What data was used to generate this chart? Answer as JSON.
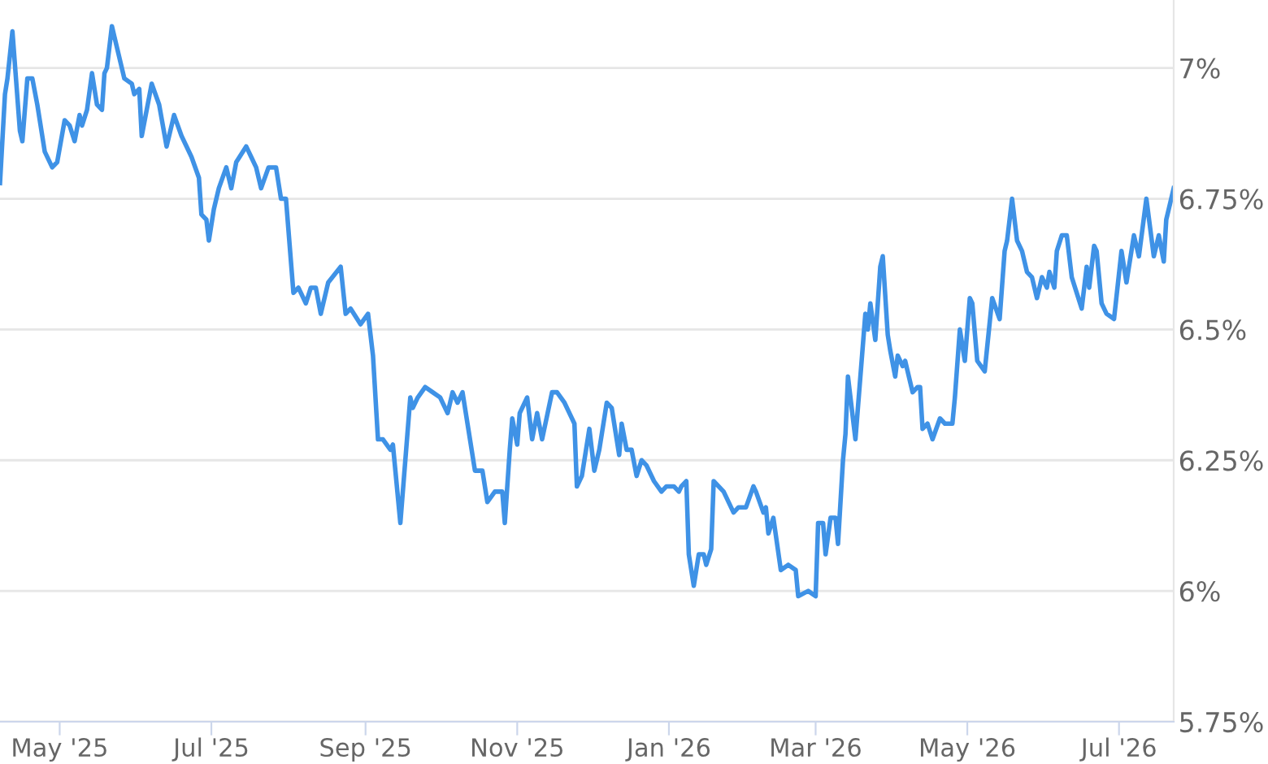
{
  "chart_data": {
    "type": "line",
    "x": [
      "2025-04-07",
      "2025-04-09",
      "2025-04-10",
      "2025-04-12",
      "2025-04-15",
      "2025-04-16",
      "2025-04-18",
      "2025-04-20",
      "2025-04-22",
      "2025-04-25",
      "2025-04-28",
      "2025-04-30",
      "2025-05-03",
      "2025-05-05",
      "2025-05-07",
      "2025-05-09",
      "2025-05-10",
      "2025-05-12",
      "2025-05-14",
      "2025-05-16",
      "2025-05-18",
      "2025-05-19",
      "2025-05-20",
      "2025-05-22",
      "2025-05-23",
      "2025-05-27",
      "2025-05-30",
      "2025-05-31",
      "2025-06-02",
      "2025-06-03",
      "2025-06-07",
      "2025-06-10",
      "2025-06-13",
      "2025-06-16",
      "2025-06-19",
      "2025-06-23",
      "2025-06-26",
      "2025-06-27",
      "2025-06-29",
      "2025-06-30",
      "2025-07-02",
      "2025-07-04",
      "2025-07-07",
      "2025-07-09",
      "2025-07-11",
      "2025-07-15",
      "2025-07-17",
      "2025-07-19",
      "2025-07-21",
      "2025-07-24",
      "2025-07-27",
      "2025-07-29",
      "2025-07-31",
      "2025-08-03",
      "2025-08-05",
      "2025-08-08",
      "2025-08-10",
      "2025-08-12",
      "2025-08-14",
      "2025-08-17",
      "2025-08-22",
      "2025-08-24",
      "2025-08-26",
      "2025-08-30",
      "2025-09-02",
      "2025-09-04",
      "2025-09-06",
      "2025-09-08",
      "2025-09-11",
      "2025-09-12",
      "2025-09-15",
      "2025-09-19",
      "2025-09-20",
      "2025-09-22",
      "2025-09-25",
      "2025-09-28",
      "2025-10-01",
      "2025-10-04",
      "2025-10-06",
      "2025-10-08",
      "2025-10-10",
      "2025-10-12",
      "2025-10-15",
      "2025-10-18",
      "2025-10-20",
      "2025-10-23",
      "2025-10-26",
      "2025-10-27",
      "2025-10-29",
      "2025-10-30",
      "2025-11-01",
      "2025-11-02",
      "2025-11-05",
      "2025-11-07",
      "2025-11-09",
      "2025-11-11",
      "2025-11-15",
      "2025-11-17",
      "2025-11-20",
      "2025-11-24",
      "2025-11-25",
      "2025-11-27",
      "2025-11-30",
      "2025-12-02",
      "2025-12-04",
      "2025-12-07",
      "2025-12-09",
      "2025-12-12",
      "2025-12-13",
      "2025-12-15",
      "2025-12-17",
      "2025-12-19",
      "2025-12-21",
      "2025-12-23",
      "2025-12-26",
      "2025-12-29",
      "2025-12-31",
      "2026-01-03",
      "2026-01-05",
      "2026-01-06",
      "2026-01-08",
      "2026-01-09",
      "2026-01-11",
      "2026-01-13",
      "2026-01-15",
      "2026-01-16",
      "2026-01-18",
      "2026-01-19",
      "2026-01-23",
      "2026-01-27",
      "2026-01-29",
      "2026-02-01",
      "2026-02-04",
      "2026-02-05",
      "2026-02-08",
      "2026-02-09",
      "2026-02-10",
      "2026-02-12",
      "2026-02-15",
      "2026-02-18",
      "2026-02-21",
      "2026-02-22",
      "2026-02-26",
      "2026-03-01",
      "2026-03-02",
      "2026-03-04",
      "2026-03-05",
      "2026-03-07",
      "2026-03-09",
      "2026-03-10",
      "2026-03-12",
      "2026-03-13",
      "2026-03-14",
      "2026-03-17",
      "2026-03-21",
      "2026-03-22",
      "2026-03-23",
      "2026-03-25",
      "2026-03-27",
      "2026-03-28",
      "2026-03-30",
      "2026-03-31",
      "2026-04-02",
      "2026-04-03",
      "2026-04-05",
      "2026-04-06",
      "2026-04-09",
      "2026-04-11",
      "2026-04-12",
      "2026-04-13",
      "2026-04-15",
      "2026-04-17",
      "2026-04-20",
      "2026-04-22",
      "2026-04-25",
      "2026-04-26",
      "2026-04-28",
      "2026-04-30",
      "2026-05-02",
      "2026-05-03",
      "2026-05-05",
      "2026-05-08",
      "2026-05-11",
      "2026-05-14",
      "2026-05-16",
      "2026-05-17",
      "2026-05-19",
      "2026-05-21",
      "2026-05-23",
      "2026-05-25",
      "2026-05-27",
      "2026-05-29",
      "2026-05-31",
      "2026-06-02",
      "2026-06-03",
      "2026-06-05",
      "2026-06-06",
      "2026-06-08",
      "2026-06-10",
      "2026-06-12",
      "2026-06-14",
      "2026-06-16",
      "2026-06-18",
      "2026-06-19",
      "2026-06-21",
      "2026-06-22",
      "2026-06-24",
      "2026-06-26",
      "2026-06-29",
      "2026-07-02",
      "2026-07-04",
      "2026-07-07",
      "2026-07-09",
      "2026-07-12",
      "2026-07-15",
      "2026-07-17",
      "2026-07-19",
      "2026-07-20",
      "2026-07-23"
    ],
    "series": [
      {
        "color": "#3f92e6",
        "values": [
          6.78,
          6.95,
          6.98,
          7.07,
          6.88,
          6.86,
          6.98,
          6.98,
          6.93,
          6.84,
          6.81,
          6.82,
          6.9,
          6.89,
          6.86,
          6.91,
          6.89,
          6.92,
          6.99,
          6.93,
          6.92,
          6.99,
          7.0,
          7.08,
          7.06,
          6.98,
          6.97,
          6.95,
          6.96,
          6.87,
          6.97,
          6.93,
          6.85,
          6.91,
          6.87,
          6.83,
          6.79,
          6.72,
          6.71,
          6.67,
          6.73,
          6.77,
          6.81,
          6.77,
          6.82,
          6.85,
          6.83,
          6.81,
          6.77,
          6.81,
          6.81,
          6.75,
          6.75,
          6.57,
          6.58,
          6.55,
          6.58,
          6.58,
          6.53,
          6.59,
          6.62,
          6.53,
          6.54,
          6.51,
          6.53,
          6.45,
          6.29,
          6.29,
          6.27,
          6.28,
          6.13,
          6.37,
          6.35,
          6.37,
          6.39,
          6.38,
          6.37,
          6.34,
          6.38,
          6.36,
          6.38,
          6.32,
          6.23,
          6.23,
          6.17,
          6.19,
          6.19,
          6.13,
          6.27,
          6.33,
          6.28,
          6.34,
          6.37,
          6.29,
          6.34,
          6.29,
          6.38,
          6.38,
          6.36,
          6.32,
          6.2,
          6.22,
          6.31,
          6.23,
          6.27,
          6.36,
          6.35,
          6.26,
          6.32,
          6.27,
          6.27,
          6.22,
          6.25,
          6.24,
          6.21,
          6.19,
          6.2,
          6.2,
          6.19,
          6.2,
          6.21,
          6.07,
          6.01,
          6.07,
          6.07,
          6.05,
          6.08,
          6.21,
          6.19,
          6.15,
          6.16,
          6.16,
          6.2,
          6.19,
          6.15,
          6.16,
          6.11,
          6.14,
          6.04,
          6.05,
          6.04,
          5.99,
          6.0,
          5.99,
          6.13,
          6.13,
          6.07,
          6.14,
          6.14,
          6.09,
          6.25,
          6.3,
          6.41,
          6.29,
          6.53,
          6.5,
          6.55,
          6.48,
          6.62,
          6.64,
          6.49,
          6.46,
          6.41,
          6.45,
          6.43,
          6.44,
          6.38,
          6.39,
          6.39,
          6.31,
          6.32,
          6.29,
          6.33,
          6.32,
          6.32,
          6.37,
          6.5,
          6.44,
          6.56,
          6.55,
          6.44,
          6.42,
          6.56,
          6.52,
          6.65,
          6.67,
          6.75,
          6.67,
          6.65,
          6.61,
          6.6,
          6.56,
          6.6,
          6.58,
          6.61,
          6.58,
          6.65,
          6.68,
          6.68,
          6.6,
          6.57,
          6.54,
          6.62,
          6.58,
          6.66,
          6.65,
          6.55,
          6.53,
          6.52,
          6.65,
          6.59,
          6.68,
          6.64,
          6.75,
          6.64,
          6.68,
          6.63,
          6.71,
          6.77
        ]
      }
    ],
    "xlim": [
      "2025-04-07",
      "2026-07-23"
    ],
    "xticks": [
      {
        "value": "2025-05-01",
        "label": "May '25"
      },
      {
        "value": "2025-07-01",
        "label": "Jul '25"
      },
      {
        "value": "2025-09-01",
        "label": "Sep '25"
      },
      {
        "value": "2025-11-01",
        "label": "Nov '25"
      },
      {
        "value": "2026-01-01",
        "label": "Jan '26"
      },
      {
        "value": "2026-03-01",
        "label": "Mar '26"
      },
      {
        "value": "2026-05-01",
        "label": "May '26"
      },
      {
        "value": "2026-07-01",
        "label": "Jul '26"
      }
    ],
    "ylim": [
      5.75,
      7.13
    ],
    "yticks": [
      {
        "value": 5.75,
        "label": "5.75%"
      },
      {
        "value": 6,
        "label": "6%"
      },
      {
        "value": 6.25,
        "label": "6.25%"
      },
      {
        "value": 6.5,
        "label": "6.5%"
      },
      {
        "value": 6.75,
        "label": "6.75%"
      },
      {
        "value": 7,
        "label": "7%"
      }
    ],
    "grid": "y",
    "marker": "none",
    "line_style": "solid",
    "legend": false
  }
}
